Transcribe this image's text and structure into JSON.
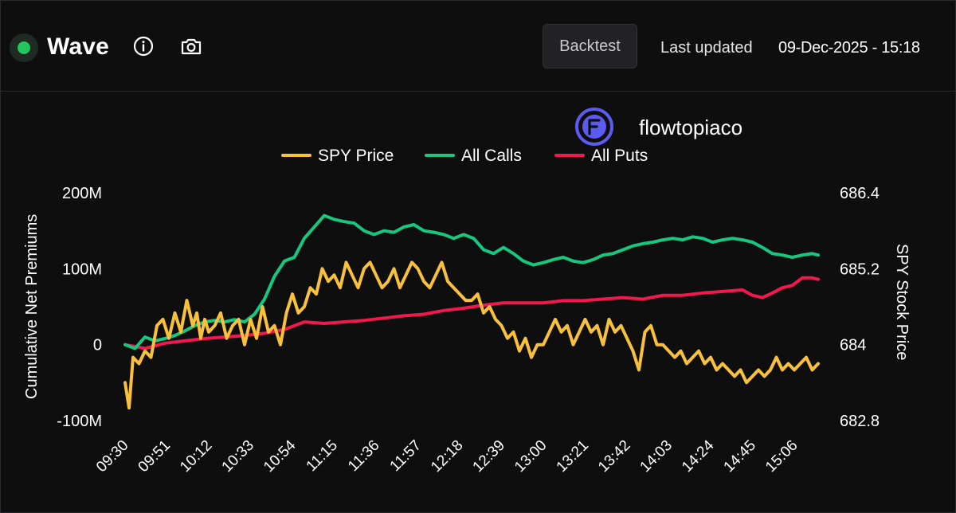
{
  "header": {
    "title": "Wave",
    "backtest_label": "Backtest",
    "last_updated_label": "Last updated",
    "last_updated_value": "09-Dec-2025 - 15:18",
    "status_color": "#22c55e",
    "info_icon": "info-icon",
    "camera_icon": "camera-icon"
  },
  "watermark": {
    "text": "flowtopiaco",
    "logo_icon": "flowtopia-logo-icon",
    "logo_color": "#5b5bf0"
  },
  "chart_data": {
    "type": "line",
    "legend_position": "top-center",
    "grid": false,
    "y_left": {
      "label": "Cumulative Net Premiums",
      "ticks": [
        "200M",
        "100M",
        "0",
        "-100M"
      ],
      "range": [
        -100,
        200
      ],
      "unit": "M"
    },
    "y_right": {
      "label": "SPY Stock Price",
      "ticks": [
        "686.4",
        "685.2",
        "684",
        "682.8"
      ],
      "range": [
        682.8,
        686.4
      ]
    },
    "x_ticks": [
      "09:30",
      "09:51",
      "10:12",
      "10:33",
      "10:54",
      "11:15",
      "11:36",
      "11:57",
      "12:18",
      "12:39",
      "13:00",
      "13:21",
      "13:42",
      "14:03",
      "14:24",
      "14:45",
      "15:06"
    ],
    "series": [
      {
        "name": "SPY Price",
        "axis": "right",
        "color": "#f9c13b",
        "times": [
          "09:30",
          "09:32",
          "09:34",
          "09:37",
          "09:40",
          "09:43",
          "09:46",
          "09:49",
          "09:52",
          "09:55",
          "09:58",
          "10:01",
          "10:04",
          "10:06",
          "10:08",
          "10:10",
          "10:12",
          "10:15",
          "10:18",
          "10:21",
          "10:24",
          "10:27",
          "10:30",
          "10:33",
          "10:36",
          "10:39",
          "10:42",
          "10:45",
          "10:48",
          "10:51",
          "10:54",
          "10:57",
          "11:00",
          "11:03",
          "11:06",
          "11:09",
          "11:12",
          "11:15",
          "11:18",
          "11:21",
          "11:24",
          "11:27",
          "11:30",
          "11:33",
          "11:36",
          "11:39",
          "11:42",
          "11:45",
          "11:48",
          "11:51",
          "11:54",
          "11:57",
          "12:00",
          "12:03",
          "12:06",
          "12:09",
          "12:12",
          "12:15",
          "12:18",
          "12:21",
          "12:24",
          "12:27",
          "12:30",
          "12:33",
          "12:36",
          "12:39",
          "12:42",
          "12:45",
          "12:48",
          "12:51",
          "12:54",
          "12:57",
          "13:00",
          "13:03",
          "13:06",
          "13:09",
          "13:12",
          "13:15",
          "13:18",
          "13:21",
          "13:24",
          "13:27",
          "13:30",
          "13:33",
          "13:36",
          "13:39",
          "13:42",
          "13:45",
          "13:48",
          "13:51",
          "13:54",
          "13:57",
          "14:00",
          "14:03",
          "14:06",
          "14:09",
          "14:12",
          "14:15",
          "14:18",
          "14:21",
          "14:24",
          "14:27",
          "14:30",
          "14:33",
          "14:36",
          "14:39",
          "14:42",
          "14:45",
          "14:48",
          "14:51",
          "14:54",
          "14:57",
          "15:00",
          "15:03",
          "15:06",
          "15:09",
          "15:12",
          "15:15",
          "15:18"
        ],
        "values": [
          683.4,
          683.0,
          683.8,
          683.7,
          683.9,
          683.8,
          684.3,
          684.4,
          684.1,
          684.5,
          684.2,
          684.7,
          684.3,
          684.5,
          684.1,
          684.4,
          684.2,
          684.3,
          684.5,
          684.1,
          684.3,
          684.4,
          684.0,
          684.4,
          684.1,
          684.6,
          684.2,
          684.3,
          684.0,
          684.5,
          684.8,
          684.5,
          684.6,
          684.9,
          684.8,
          685.2,
          685.0,
          685.1,
          684.9,
          685.3,
          685.1,
          684.9,
          685.2,
          685.3,
          685.1,
          684.9,
          685.0,
          685.2,
          684.9,
          685.1,
          685.3,
          685.2,
          685.0,
          684.9,
          685.1,
          685.3,
          685.0,
          684.9,
          684.8,
          684.7,
          684.7,
          684.8,
          684.5,
          684.6,
          684.4,
          684.3,
          684.1,
          684.2,
          683.9,
          684.1,
          683.8,
          684.0,
          684.0,
          684.2,
          684.4,
          684.2,
          684.3,
          684.0,
          684.2,
          684.4,
          684.2,
          684.3,
          684.0,
          684.4,
          684.2,
          684.3,
          684.1,
          683.9,
          683.6,
          684.2,
          684.3,
          684.0,
          684.0,
          683.9,
          683.8,
          683.9,
          683.7,
          683.8,
          683.9,
          683.7,
          683.8,
          683.6,
          683.7,
          683.6,
          683.5,
          683.6,
          683.4,
          683.5,
          683.6,
          683.5,
          683.6,
          683.8,
          683.6,
          683.7,
          683.6,
          683.7,
          683.8,
          683.6,
          683.7
        ],
        "note_t_format": "HH:MM"
      },
      {
        "name": "All Calls",
        "axis": "left",
        "color": "#18c77f",
        "times": [
          "09:30",
          "09:35",
          "09:40",
          "09:45",
          "09:50",
          "09:55",
          "10:00",
          "10:05",
          "10:10",
          "10:15",
          "10:20",
          "10:25",
          "10:30",
          "10:35",
          "10:40",
          "10:45",
          "10:50",
          "10:55",
          "11:00",
          "11:05",
          "11:10",
          "11:15",
          "11:20",
          "11:25",
          "11:30",
          "11:35",
          "11:40",
          "11:45",
          "11:50",
          "11:55",
          "12:00",
          "12:05",
          "12:10",
          "12:15",
          "12:20",
          "12:25",
          "12:30",
          "12:35",
          "12:40",
          "12:45",
          "12:50",
          "12:55",
          "13:00",
          "13:05",
          "13:10",
          "13:15",
          "13:20",
          "13:25",
          "13:30",
          "13:35",
          "13:40",
          "13:45",
          "13:50",
          "13:55",
          "14:00",
          "14:05",
          "14:10",
          "14:15",
          "14:20",
          "14:25",
          "14:30",
          "14:35",
          "14:40",
          "14:45",
          "14:50",
          "14:55",
          "15:00",
          "15:05",
          "15:10",
          "15:15",
          "15:18"
        ],
        "values": [
          0,
          -5,
          10,
          5,
          8,
          12,
          18,
          25,
          30,
          32,
          30,
          33,
          30,
          40,
          60,
          90,
          110,
          115,
          140,
          155,
          170,
          165,
          162,
          160,
          150,
          145,
          150,
          148,
          155,
          158,
          150,
          148,
          145,
          140,
          145,
          140,
          125,
          120,
          128,
          120,
          110,
          105,
          108,
          112,
          115,
          110,
          108,
          112,
          118,
          120,
          125,
          130,
          133,
          135,
          138,
          140,
          138,
          142,
          140,
          135,
          138,
          140,
          138,
          135,
          128,
          120,
          118,
          115,
          118,
          120,
          118
        ]
      },
      {
        "name": "All Puts",
        "axis": "left",
        "color": "#f2184f",
        "times": [
          "09:30",
          "09:40",
          "09:50",
          "10:00",
          "10:10",
          "10:20",
          "10:30",
          "10:40",
          "10:50",
          "11:00",
          "11:10",
          "11:20",
          "11:30",
          "11:40",
          "11:50",
          "12:00",
          "12:10",
          "12:20",
          "12:30",
          "12:40",
          "12:50",
          "13:00",
          "13:10",
          "13:20",
          "13:30",
          "13:40",
          "13:50",
          "14:00",
          "14:10",
          "14:20",
          "14:30",
          "14:40",
          "14:45",
          "14:50",
          "14:55",
          "15:00",
          "15:05",
          "15:10",
          "15:15",
          "15:18"
        ],
        "values": [
          0,
          -5,
          2,
          5,
          8,
          10,
          12,
          15,
          20,
          30,
          28,
          30,
          32,
          35,
          38,
          40,
          45,
          48,
          52,
          55,
          55,
          55,
          58,
          58,
          60,
          62,
          60,
          65,
          65,
          68,
          70,
          72,
          65,
          62,
          68,
          75,
          78,
          88,
          88,
          86
        ]
      }
    ]
  }
}
